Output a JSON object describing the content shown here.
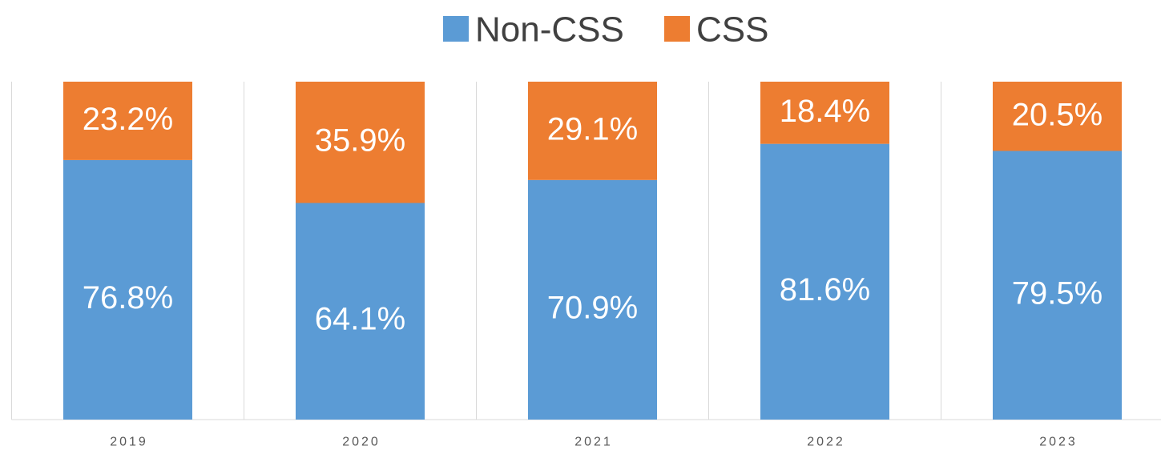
{
  "chart_data": {
    "type": "stacked_bar_100",
    "categories": [
      "2019",
      "2020",
      "2021",
      "2022",
      "2023"
    ],
    "series": [
      {
        "name": "Non-CSS",
        "color": "#5b9bd5",
        "values": [
          76.8,
          64.1,
          70.9,
          81.6,
          79.5
        ],
        "value_labels": [
          "76.8%",
          "64.1%",
          "70.9%",
          "81.6%",
          "79.5%"
        ]
      },
      {
        "name": "CSS",
        "color": "#ed7d31",
        "values": [
          23.2,
          35.9,
          29.1,
          18.4,
          20.5
        ],
        "value_labels": [
          "23.2%",
          "35.9%",
          "29.1%",
          "18.4%",
          "20.5%"
        ]
      }
    ],
    "legend": "top"
  }
}
